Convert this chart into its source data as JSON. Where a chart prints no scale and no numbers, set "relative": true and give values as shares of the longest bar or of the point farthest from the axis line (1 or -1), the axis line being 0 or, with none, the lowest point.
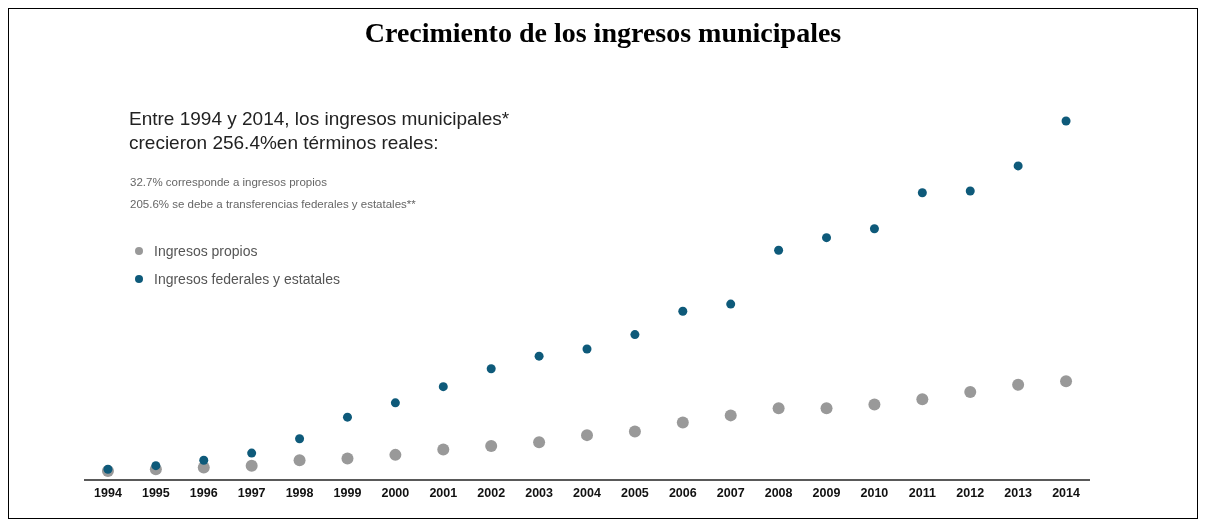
{
  "chart_data": {
    "type": "scatter",
    "relative": true,
    "title": "Crecimiento de los ingresos municipales",
    "subtitle": "Entre 1994 y 2014, los ingresos municipales* crecieron 256.4%en términos reales:",
    "annotations": [
      "32.7% corresponde a ingresos propios",
      "205.6% se debe a transferencias federales y estatales**"
    ],
    "categories": [
      "1994",
      "1995",
      "1996",
      "1997",
      "1998",
      "1999",
      "2000",
      "2001",
      "2002",
      "2003",
      "2004",
      "2005",
      "2006",
      "2007",
      "2008",
      "2009",
      "2010",
      "2011",
      "2012",
      "2013",
      "2014"
    ],
    "legend": "top left",
    "marker": "circle",
    "grid": false,
    "series": [
      {
        "name": "Ingresos propios",
        "color": "#999999",
        "values": [
          0.025,
          0.03,
          0.035,
          0.04,
          0.055,
          0.06,
          0.07,
          0.085,
          0.095,
          0.105,
          0.125,
          0.135,
          0.16,
          0.18,
          0.2,
          0.2,
          0.21,
          0.225,
          0.245,
          0.265,
          0.275
        ]
      },
      {
        "name": "Ingresos federales y estatales",
        "color": "#0e5a7a",
        "values": [
          0.03,
          0.04,
          0.055,
          0.075,
          0.115,
          0.175,
          0.215,
          0.26,
          0.31,
          0.345,
          0.365,
          0.405,
          0.47,
          0.49,
          0.64,
          0.675,
          0.7,
          0.8,
          0.805,
          0.875,
          1
        ]
      }
    ]
  }
}
